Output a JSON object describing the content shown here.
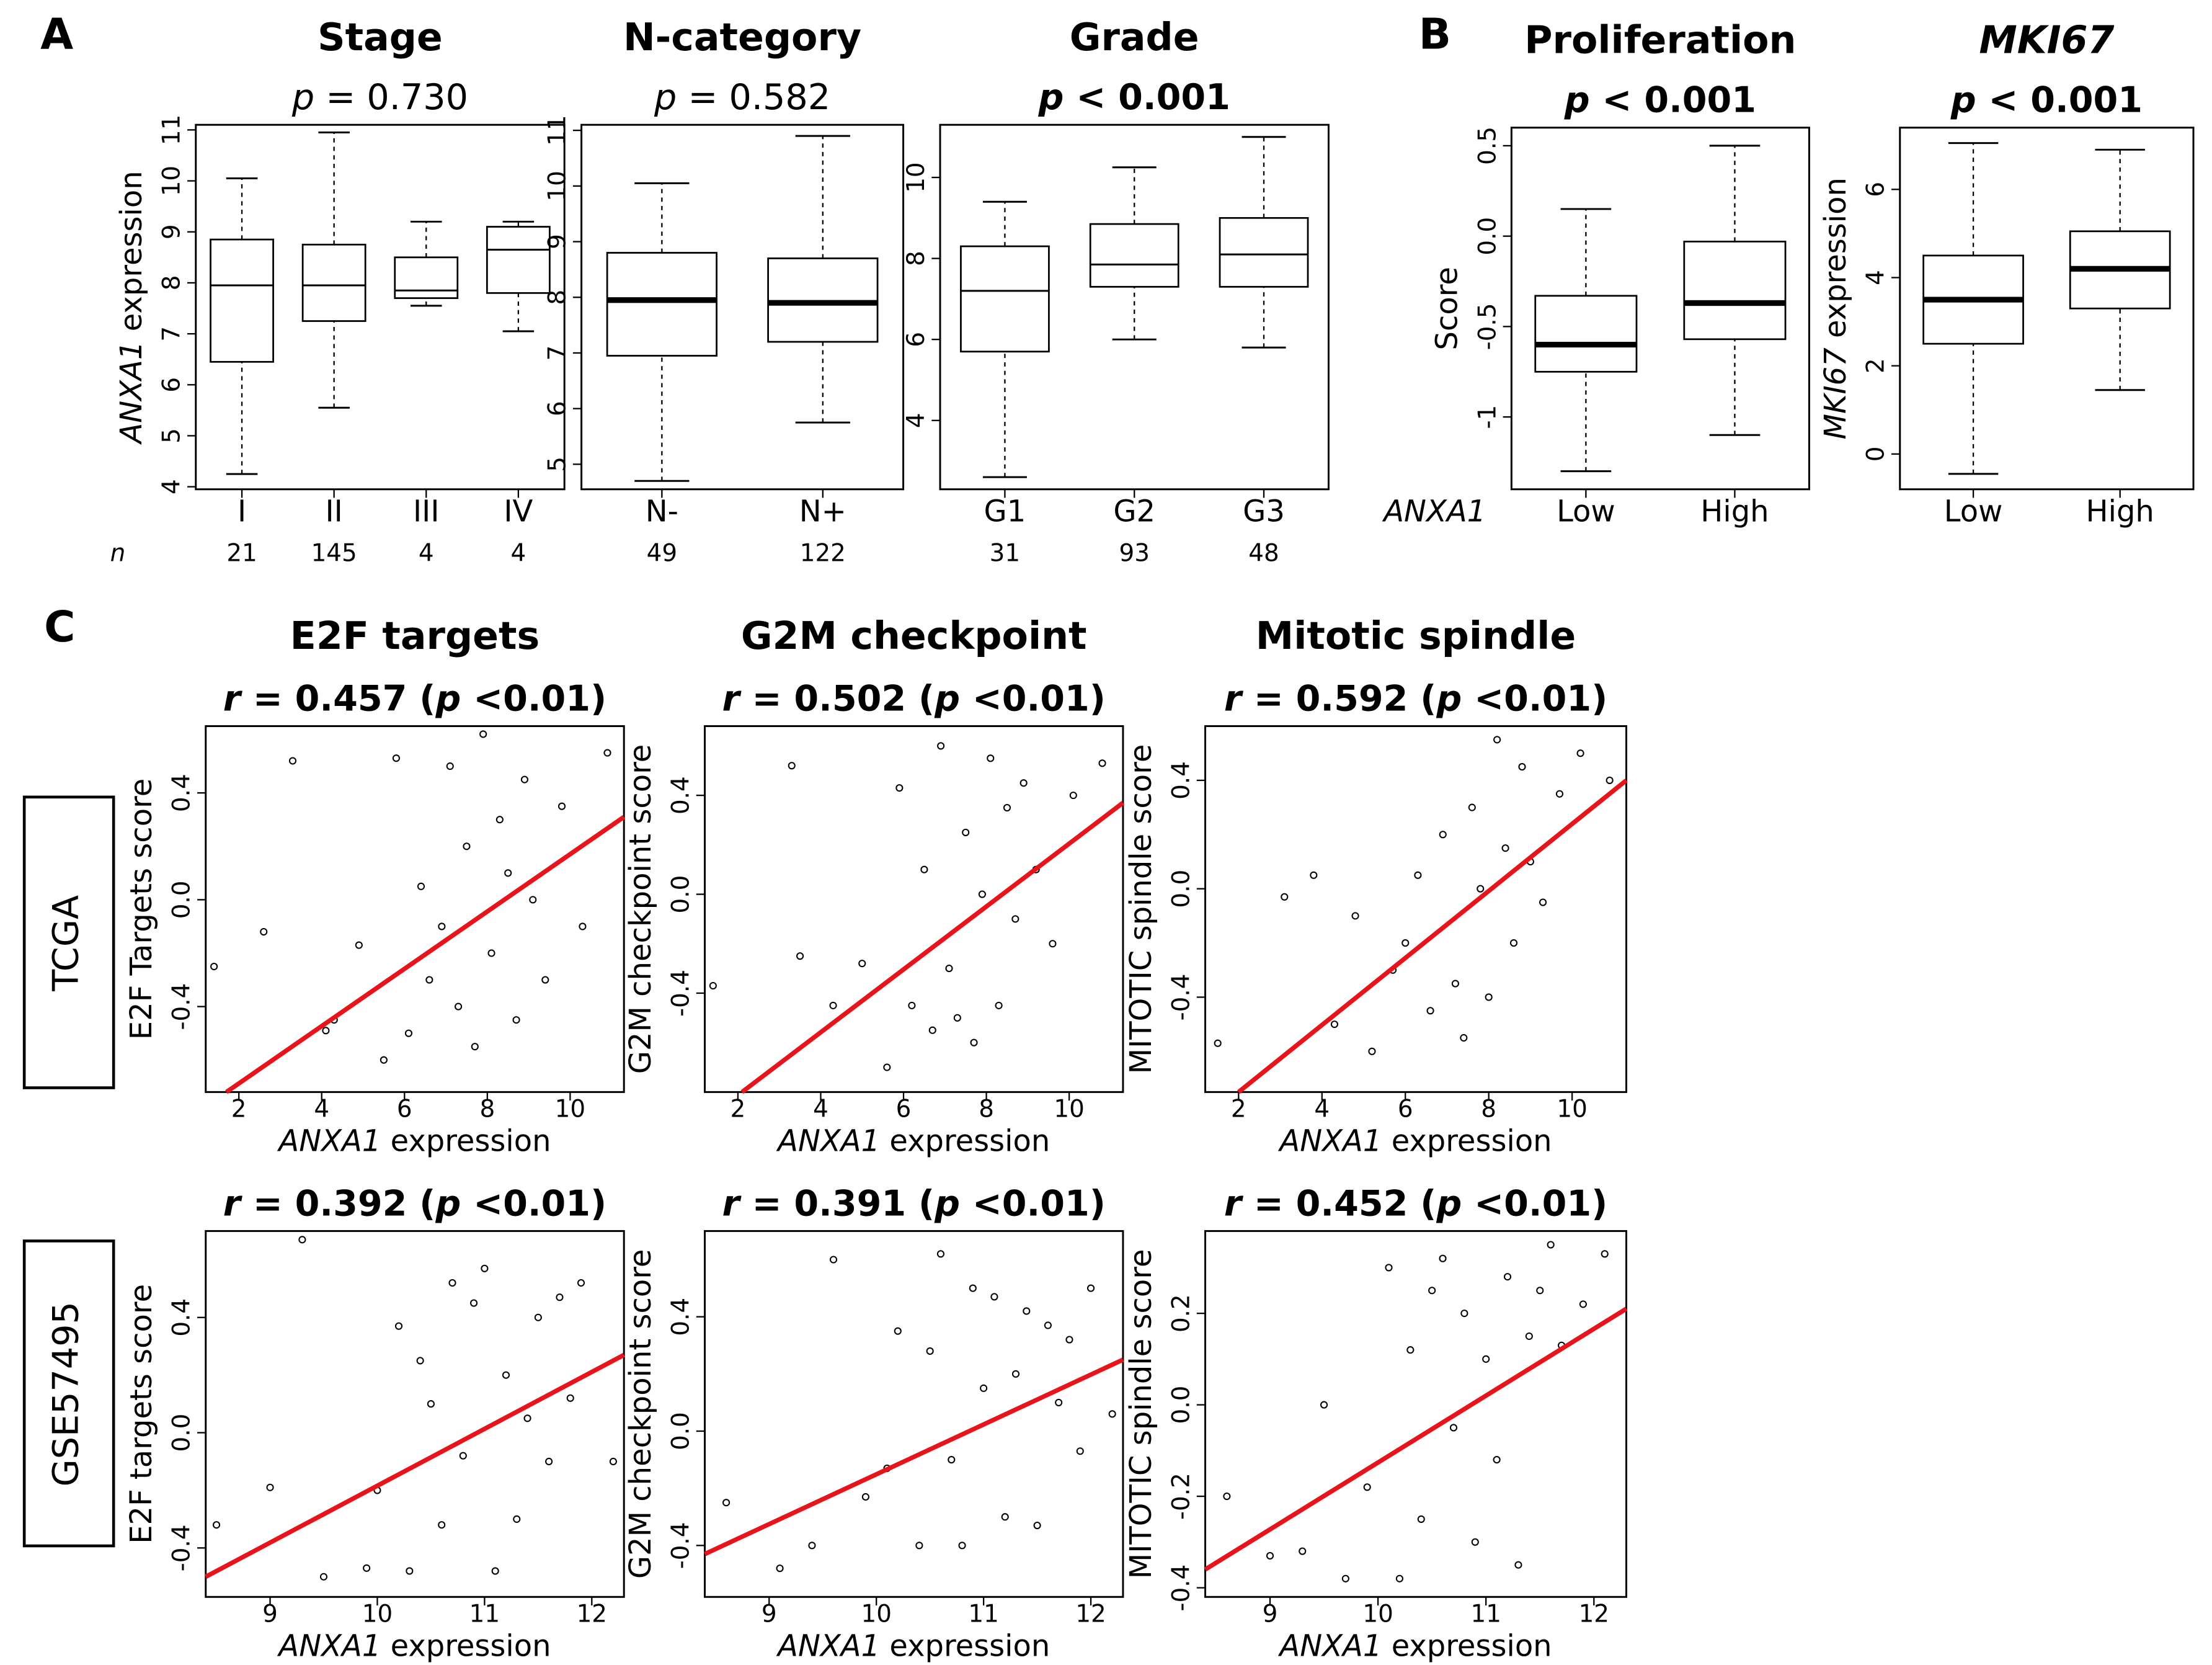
{
  "panel_labels": [
    "A",
    "B",
    "C"
  ],
  "row_labels": [
    "TCGA",
    "GSE57495"
  ],
  "chart_data": [
    {
      "type": "box",
      "title": "Stage",
      "subtitle": [
        {
          "text": "p",
          "italic": true
        },
        {
          "text": " = 0.730"
        }
      ],
      "subtitle_bold": false,
      "ylabel": [
        {
          "text": "ANXA1",
          "italic": true
        },
        {
          "text": " expression"
        }
      ],
      "categories": [
        "I",
        "II",
        "III",
        "IV"
      ],
      "n_label": "n",
      "n": [
        21,
        145,
        4,
        4
      ],
      "boxes": [
        {
          "low": 4.25,
          "q1": 6.45,
          "median": 7.95,
          "q3": 8.85,
          "high": 10.05
        },
        {
          "low": 5.55,
          "q1": 7.25,
          "median": 7.95,
          "q3": 8.75,
          "high": 10.95
        },
        {
          "low": 7.55,
          "q1": 7.7,
          "median": 7.85,
          "q3": 8.5,
          "high": 9.2
        },
        {
          "low": 7.05,
          "q1": 7.8,
          "median": 8.65,
          "q3": 9.1,
          "high": 9.2
        }
      ],
      "median_bold": false,
      "ylim": [
        3.95,
        11.1
      ],
      "yticks": [
        4,
        5,
        6,
        7,
        8,
        9,
        10,
        11
      ]
    },
    {
      "type": "box",
      "title": "N-category",
      "subtitle": [
        {
          "text": "p",
          "italic": true
        },
        {
          "text": " = 0.582"
        }
      ],
      "subtitle_bold": false,
      "categories": [
        "N-",
        "N+"
      ],
      "n": [
        49,
        122
      ],
      "boxes": [
        {
          "low": 4.7,
          "q1": 6.95,
          "median": 7.95,
          "q3": 8.8,
          "high": 10.05
        },
        {
          "low": 5.75,
          "q1": 7.2,
          "median": 7.9,
          "q3": 8.7,
          "high": 10.9
        }
      ],
      "median_bold": true,
      "ylim": [
        4.55,
        11.1
      ],
      "yticks": [
        5,
        6,
        7,
        8,
        9,
        10,
        11
      ]
    },
    {
      "type": "box",
      "title": "Grade",
      "subtitle": [
        {
          "text": "p",
          "italic": true
        },
        {
          "text": " < 0.001"
        }
      ],
      "subtitle_bold": true,
      "categories": [
        "G1",
        "G2",
        "G3"
      ],
      "n": [
        31,
        93,
        48
      ],
      "boxes": [
        {
          "low": 2.6,
          "q1": 5.7,
          "median": 7.2,
          "q3": 8.3,
          "high": 9.4
        },
        {
          "low": 6.0,
          "q1": 7.3,
          "median": 7.85,
          "q3": 8.85,
          "high": 10.25
        },
        {
          "low": 5.8,
          "q1": 7.3,
          "median": 8.1,
          "q3": 9.0,
          "high": 11.0
        }
      ],
      "median_bold": false,
      "ylim": [
        2.3,
        11.3
      ],
      "yticks": [
        4,
        6,
        8,
        10
      ]
    },
    {
      "type": "box",
      "title": "Proliferation",
      "subtitle": [
        {
          "text": "p",
          "italic": true
        },
        {
          "text": " < 0.001"
        }
      ],
      "subtitle_bold": true,
      "ylabel": [
        {
          "text": "Score"
        }
      ],
      "group_label": {
        "text": "ANXA1",
        "italic": true
      },
      "categories": [
        "Low",
        "High"
      ],
      "boxes": [
        {
          "low": -1.3,
          "q1": -0.75,
          "median": -0.6,
          "q3": -0.33,
          "high": 0.15
        },
        {
          "low": -1.1,
          "q1": -0.57,
          "median": -0.37,
          "q3": -0.03,
          "high": 0.5
        }
      ],
      "median_bold": true,
      "ylim": [
        -1.4,
        0.6
      ],
      "yticks": [
        -1.0,
        -0.5,
        {
          "value": 0,
          "label": "0.0"
        },
        0.5
      ]
    },
    {
      "type": "box",
      "title": "MKI67",
      "title_italic": true,
      "subtitle": [
        {
          "text": "p",
          "italic": true
        },
        {
          "text": " < 0.001"
        }
      ],
      "subtitle_bold": true,
      "ylabel": [
        {
          "text": "MKI67",
          "italic": true
        },
        {
          "text": " expression"
        }
      ],
      "categories": [
        "Low",
        "High"
      ],
      "boxes": [
        {
          "low": -0.45,
          "q1": 2.5,
          "median": 3.5,
          "q3": 4.5,
          "high": 7.05
        },
        {
          "low": 1.45,
          "q1": 3.3,
          "median": 4.2,
          "q3": 5.05,
          "high": 6.9
        }
      ],
      "median_bold": true,
      "ylim": [
        -0.8,
        7.4
      ],
      "yticks": [
        0,
        2,
        4,
        6
      ]
    },
    {
      "type": "scatter",
      "title": "E2F targets",
      "subtitle": [
        {
          "text": "r",
          "italic": true
        },
        {
          "text": " = 0.457 ("
        },
        {
          "text": "p",
          "italic": true
        },
        {
          "text": " <0.01)"
        }
      ],
      "ylabel": "E2F Targets score",
      "xlabel": [
        {
          "text": "ANXA1",
          "italic": true
        },
        {
          "text": " expression"
        }
      ],
      "xlim": [
        1.2,
        11.3
      ],
      "xticks": [
        2,
        4,
        6,
        8,
        10
      ],
      "ylim": [
        -0.72,
        0.65
      ],
      "yticks": [
        -0.4,
        {
          "value": 0,
          "label": "0.0"
        },
        0.4
      ],
      "x": [
        1.4,
        2.6,
        3.3,
        4.1,
        4.3,
        4.9,
        5.5,
        5.8,
        6.1,
        6.4,
        6.6,
        6.9,
        7.1,
        7.3,
        7.5,
        7.7,
        7.9,
        8.1,
        8.3,
        8.5,
        8.7,
        8.9,
        9.1,
        9.4,
        9.8,
        10.3,
        10.9
      ],
      "y": [
        -0.25,
        -0.12,
        0.52,
        -0.49,
        -0.45,
        -0.17,
        -0.6,
        0.53,
        -0.5,
        0.05,
        -0.3,
        -0.1,
        0.5,
        -0.4,
        0.2,
        -0.55,
        0.62,
        -0.2,
        0.3,
        0.1,
        -0.45,
        0.45,
        0.0,
        -0.3,
        0.35,
        -0.1,
        0.55
      ],
      "fit": {
        "x": [
          1.7,
          11.3
        ],
        "y": [
          -0.72,
          0.31
        ],
        "color": "#e8141b"
      }
    },
    {
      "type": "scatter",
      "title": "G2M checkpoint",
      "subtitle": [
        {
          "text": "r",
          "italic": true
        },
        {
          "text": " = 0.502 ("
        },
        {
          "text": "p",
          "italic": true
        },
        {
          "text": " <0.01)"
        }
      ],
      "ylabel": "G2M checkpoint score",
      "xlabel": [
        {
          "text": "ANXA1",
          "italic": true
        },
        {
          "text": " expression"
        }
      ],
      "xlim": [
        1.2,
        11.3
      ],
      "xticks": [
        2,
        4,
        6,
        8,
        10
      ],
      "ylim": [
        -0.8,
        0.68
      ],
      "yticks": [
        -0.4,
        {
          "value": 0,
          "label": "0.0"
        },
        0.4
      ],
      "x": [
        1.4,
        3.3,
        3.5,
        4.3,
        5.0,
        5.6,
        5.9,
        6.2,
        6.5,
        6.7,
        6.9,
        7.1,
        7.3,
        7.5,
        7.7,
        7.9,
        8.1,
        8.3,
        8.5,
        8.7,
        8.9,
        9.2,
        9.6,
        10.1,
        10.8
      ],
      "y": [
        -0.37,
        0.52,
        -0.25,
        -0.45,
        -0.28,
        -0.7,
        0.43,
        -0.45,
        0.1,
        -0.55,
        0.6,
        -0.3,
        -0.5,
        0.25,
        -0.6,
        0.0,
        0.55,
        -0.45,
        0.35,
        -0.1,
        0.45,
        0.1,
        -0.2,
        0.4,
        0.53
      ],
      "fit": {
        "x": [
          2.1,
          11.3
        ],
        "y": [
          -0.8,
          0.37
        ],
        "color": "#e8141b"
      }
    },
    {
      "type": "scatter",
      "title": "Mitotic spindle",
      "subtitle": [
        {
          "text": "r",
          "italic": true
        },
        {
          "text": " = 0.592 ("
        },
        {
          "text": "p",
          "italic": true
        },
        {
          "text": " <0.01)"
        }
      ],
      "ylabel": "MITOTIC spindle score",
      "xlabel": [
        {
          "text": "ANXA1",
          "italic": true
        },
        {
          "text": " expression"
        }
      ],
      "xlim": [
        1.2,
        11.3
      ],
      "xticks": [
        2,
        4,
        6,
        8,
        10
      ],
      "ylim": [
        -0.75,
        0.6
      ],
      "yticks": [
        -0.4,
        {
          "value": 0,
          "label": "0.0"
        },
        0.4
      ],
      "x": [
        1.5,
        3.1,
        3.8,
        4.3,
        4.8,
        5.2,
        5.7,
        6.0,
        6.3,
        6.6,
        6.9,
        7.2,
        7.4,
        7.6,
        7.8,
        8.0,
        8.2,
        8.4,
        8.6,
        8.8,
        9.0,
        9.3,
        9.7,
        10.2,
        10.9
      ],
      "y": [
        -0.57,
        -0.03,
        0.05,
        -0.5,
        -0.1,
        -0.6,
        -0.3,
        -0.2,
        0.05,
        -0.45,
        0.2,
        -0.35,
        -0.55,
        0.3,
        0.0,
        -0.4,
        0.55,
        0.15,
        -0.2,
        0.45,
        0.1,
        -0.05,
        0.35,
        0.5,
        0.4
      ],
      "fit": {
        "x": [
          2.0,
          11.3
        ],
        "y": [
          -0.75,
          0.4
        ],
        "color": "#e8141b"
      }
    },
    {
      "type": "scatter",
      "subtitle": [
        {
          "text": "r",
          "italic": true
        },
        {
          "text": " = 0.392 ("
        },
        {
          "text": "p",
          "italic": true
        },
        {
          "text": " <0.01)"
        }
      ],
      "ylabel": "E2F targets score",
      "xlabel": [
        {
          "text": "ANXA1",
          "italic": true
        },
        {
          "text": " expression"
        }
      ],
      "xlim": [
        8.4,
        12.3
      ],
      "xticks": [
        9,
        10,
        11,
        12
      ],
      "ylim": [
        -0.57,
        0.7
      ],
      "yticks": [
        -0.4,
        {
          "value": 0,
          "label": "0.0"
        },
        0.4
      ],
      "x": [
        8.5,
        9.0,
        9.3,
        9.5,
        9.9,
        10.0,
        10.2,
        10.3,
        10.4,
        10.5,
        10.6,
        10.7,
        10.8,
        10.9,
        11.0,
        11.1,
        11.2,
        11.3,
        11.4,
        11.5,
        11.6,
        11.7,
        11.8,
        11.9,
        12.2
      ],
      "y": [
        -0.32,
        -0.19,
        0.67,
        -0.5,
        -0.47,
        -0.2,
        0.37,
        -0.48,
        0.25,
        0.1,
        -0.32,
        0.52,
        -0.08,
        0.45,
        0.57,
        -0.48,
        0.2,
        -0.3,
        0.05,
        0.4,
        -0.1,
        0.47,
        0.12,
        0.52,
        -0.1
      ],
      "fit": {
        "x": [
          8.4,
          12.3
        ],
        "y": [
          -0.5,
          0.27
        ],
        "color": "#e8141b"
      }
    },
    {
      "type": "scatter",
      "subtitle": [
        {
          "text": "r",
          "italic": true
        },
        {
          "text": " = 0.391 ("
        },
        {
          "text": "p",
          "italic": true
        },
        {
          "text": " <0.01)"
        }
      ],
      "ylabel": "G2M checkpoint score",
      "xlabel": [
        {
          "text": "ANXA1",
          "italic": true
        },
        {
          "text": " expression"
        }
      ],
      "xlim": [
        8.4,
        12.3
      ],
      "xticks": [
        9,
        10,
        11,
        12
      ],
      "ylim": [
        -0.58,
        0.7
      ],
      "yticks": [
        -0.4,
        {
          "value": 0,
          "label": "0.0"
        },
        0.4
      ],
      "x": [
        8.6,
        9.1,
        9.4,
        9.6,
        9.9,
        10.1,
        10.2,
        10.4,
        10.5,
        10.6,
        10.7,
        10.8,
        10.9,
        11.0,
        11.1,
        11.2,
        11.3,
        11.4,
        11.5,
        11.6,
        11.7,
        11.8,
        11.9,
        12.0,
        12.2
      ],
      "y": [
        -0.25,
        -0.48,
        -0.4,
        0.6,
        -0.23,
        -0.13,
        0.35,
        -0.4,
        0.28,
        0.62,
        -0.1,
        -0.4,
        0.5,
        0.15,
        0.47,
        -0.3,
        0.2,
        0.42,
        -0.33,
        0.37,
        0.1,
        0.32,
        -0.07,
        0.5,
        0.06
      ],
      "fit": {
        "x": [
          8.4,
          12.3
        ],
        "y": [
          -0.43,
          0.25
        ],
        "color": "#e8141b"
      }
    },
    {
      "type": "scatter",
      "subtitle": [
        {
          "text": "r",
          "italic": true
        },
        {
          "text": " = 0.452 ("
        },
        {
          "text": "p",
          "italic": true
        },
        {
          "text": " <0.01)"
        }
      ],
      "ylabel": "MITOTIC spindle score",
      "xlabel": [
        {
          "text": "ANXA1",
          "italic": true
        },
        {
          "text": " expression"
        }
      ],
      "xlim": [
        8.4,
        12.3
      ],
      "xticks": [
        9,
        10,
        11,
        12
      ],
      "ylim": [
        -0.42,
        0.38
      ],
      "yticks": [
        -0.4,
        -0.2,
        {
          "value": 0,
          "label": "0.0"
        },
        0.2
      ],
      "x": [
        8.6,
        9.0,
        9.3,
        9.5,
        9.7,
        9.9,
        10.1,
        10.2,
        10.3,
        10.4,
        10.5,
        10.6,
        10.7,
        10.8,
        10.9,
        11.0,
        11.1,
        11.2,
        11.3,
        11.4,
        11.5,
        11.6,
        11.7,
        11.9,
        12.1
      ],
      "y": [
        -0.2,
        -0.33,
        -0.32,
        0.0,
        -0.38,
        -0.18,
        0.3,
        -0.38,
        0.12,
        -0.25,
        0.25,
        0.32,
        -0.05,
        0.2,
        -0.3,
        0.1,
        -0.12,
        0.28,
        -0.35,
        0.15,
        0.25,
        0.35,
        0.13,
        0.22,
        0.33
      ],
      "fit": {
        "x": [
          8.4,
          12.3
        ],
        "y": [
          -0.36,
          0.21
        ],
        "color": "#e8141b"
      }
    }
  ]
}
